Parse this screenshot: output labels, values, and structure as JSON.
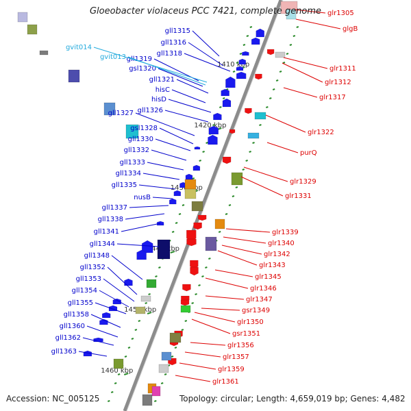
{
  "title": "Gloeobacter violaceus PCC 7421, complete genome",
  "accession": "Accession: NC_005125",
  "topology": "Topology: circular; Length: 4,659,019 bp; Genes: 4,482",
  "colors": {
    "left_label": "#0000cc",
    "right_label": "#dd0000",
    "rna_label": "#22aadd",
    "backbone": "#8c8c8c"
  },
  "ticks": [
    "1410 kbp",
    "1420 kbp",
    "1430 kbp",
    "1440 kbp",
    "1450 kbp",
    "1460 kbp"
  ],
  "left_genes": [
    "gll1315",
    "gll1316",
    "gll1318",
    "gll1319",
    "gsl1320",
    "gll1321",
    "hisC",
    "hisD",
    "gll1326",
    "gll1327",
    "gsl1328",
    "gll1330",
    "gll1332",
    "gll1333",
    "gll1334",
    "gll1335",
    "nusB",
    "gll1337",
    "gll1338",
    "gll1341",
    "gll1344",
    "gll1348",
    "gll1352",
    "gll1353",
    "gll1354",
    "gll1355",
    "gll1358",
    "gll1360",
    "gll1362",
    "gll1363"
  ],
  "rna_genes": [
    "gvit014",
    "gvit013"
  ],
  "right_genes": [
    "glr1305",
    "glgB",
    "glr1311",
    "glr1312",
    "glr1317",
    "glr1322",
    "purQ",
    "glr1329",
    "glr1331",
    "glr1339",
    "glr1340",
    "glr1342",
    "glr1343",
    "glr1345",
    "glr1346",
    "glr1347",
    "gsr1349",
    "glr1350",
    "gsr1351",
    "glr1356",
    "glr1357",
    "glr1359",
    "glr1361"
  ]
}
